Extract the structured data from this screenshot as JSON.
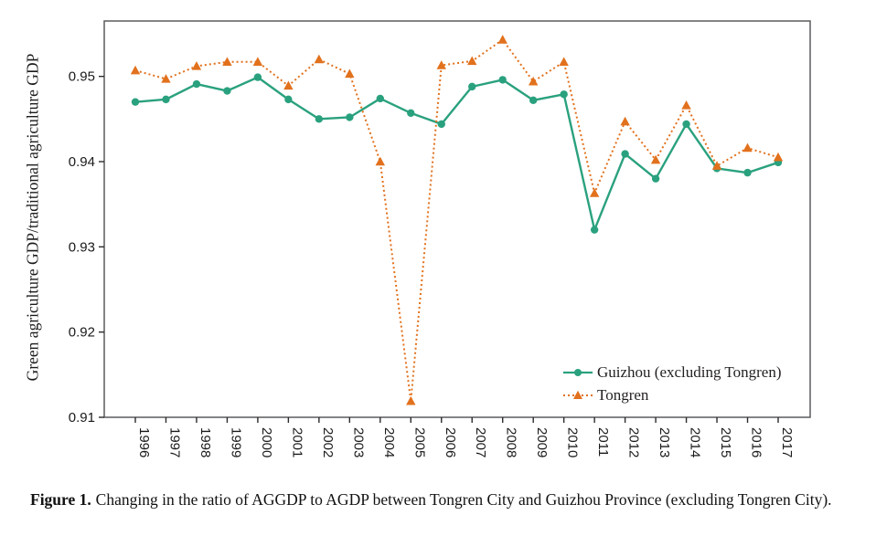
{
  "figure": {
    "caption_label": "Figure 1.",
    "caption_text": "Changing in the ratio of AGGDP to AGDP between Tongren City and Guizhou Province (excluding Tongren City)."
  },
  "chart_data": {
    "type": "line",
    "title": "",
    "xlabel": "",
    "ylabel": "Green agriculture GDP/traditional agriculture GDP",
    "x": [
      1996,
      1997,
      1998,
      1999,
      2000,
      2001,
      2002,
      2003,
      2004,
      2005,
      2006,
      2007,
      2008,
      2009,
      2010,
      2011,
      2012,
      2013,
      2014,
      2015,
      2016,
      2017
    ],
    "ylim": [
      0.91,
      0.9565
    ],
    "yticks": [
      0.91,
      0.92,
      0.93,
      0.94,
      0.95
    ],
    "grid": false,
    "legend_position": "inside-bottom-right",
    "axis_color": "#5a5b5e",
    "tick_color": "#2b2b2b",
    "tick_label_color": "#1a1a1a",
    "series": [
      {
        "name": "Guizhou (excluding Tongren)",
        "color": "#2aa17e",
        "marker": "circle",
        "line_style": "solid",
        "values": [
          0.947,
          0.9473,
          0.9491,
          0.9483,
          0.9499,
          0.9473,
          0.945,
          0.9452,
          0.9474,
          0.9457,
          0.9444,
          0.9488,
          0.9496,
          0.9472,
          0.9479,
          0.932,
          0.9409,
          0.938,
          0.9444,
          0.9392,
          0.9387,
          0.9399
        ]
      },
      {
        "name": "Tongren",
        "color": "#e2711d",
        "marker": "triangle",
        "line_style": "dotted",
        "values": [
          0.9507,
          0.9497,
          0.9512,
          0.9517,
          0.9517,
          0.9489,
          0.952,
          0.9503,
          0.94,
          0.9119,
          0.9513,
          0.9518,
          0.9543,
          0.9494,
          0.9517,
          0.9363,
          0.9447,
          0.9402,
          0.9466,
          0.9395,
          0.9416,
          0.9405
        ]
      }
    ]
  }
}
